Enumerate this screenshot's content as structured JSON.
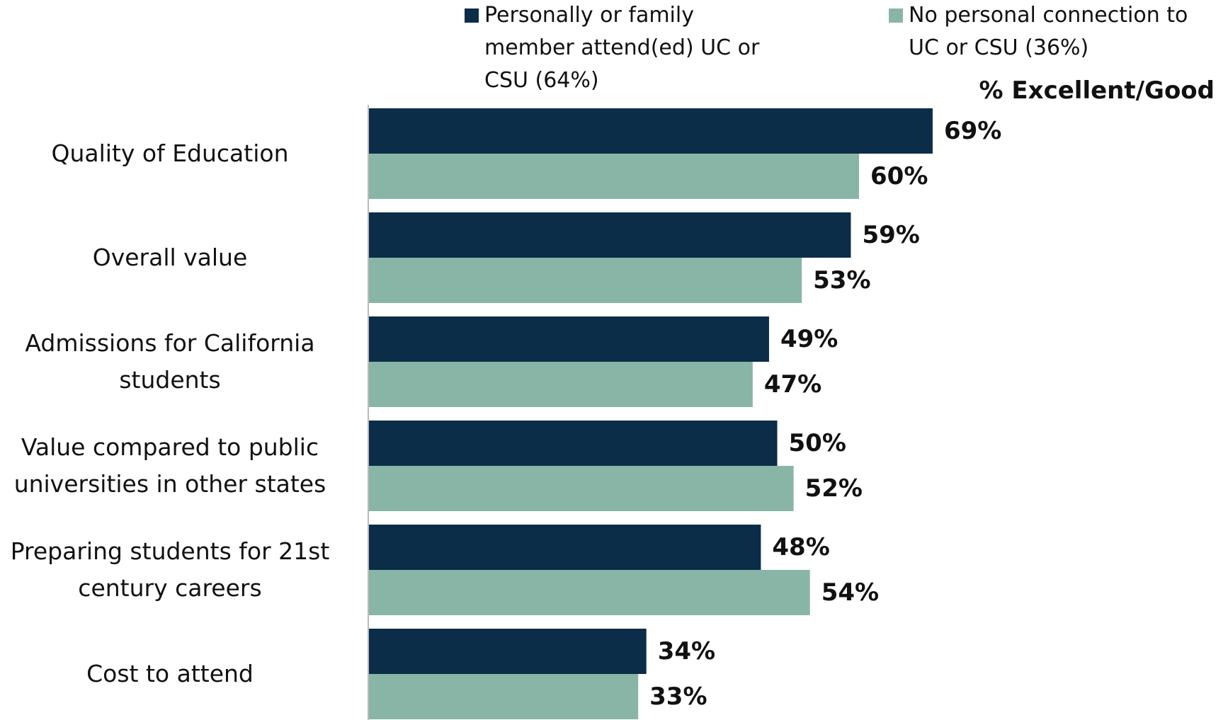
{
  "chart_data": {
    "type": "bar",
    "orientation": "horizontal",
    "axis_label": "% Excellent/Good",
    "categories": [
      "Quality of Education",
      "Overall value",
      "Admissions for California students",
      "Value compared to public universities in other states",
      "Preparing students for 21st century careers",
      "Cost to attend"
    ],
    "series": [
      {
        "name": "Personally or family member attend(ed) UC or CSU (64%)",
        "color": "#0c2d48",
        "values": [
          69,
          59,
          49,
          50,
          48,
          34
        ],
        "value_labels": [
          "69%",
          "59%",
          "49%",
          "50%",
          "48%",
          "34%"
        ]
      },
      {
        "name": "No personal connection to UC or CSU (36%)",
        "color": "#88b5a6",
        "values": [
          60,
          53,
          47,
          52,
          54,
          33
        ],
        "value_labels": [
          "60%",
          "53%",
          "47%",
          "52%",
          "54%",
          "33%"
        ]
      }
    ],
    "xlim": [
      0,
      100
    ]
  }
}
